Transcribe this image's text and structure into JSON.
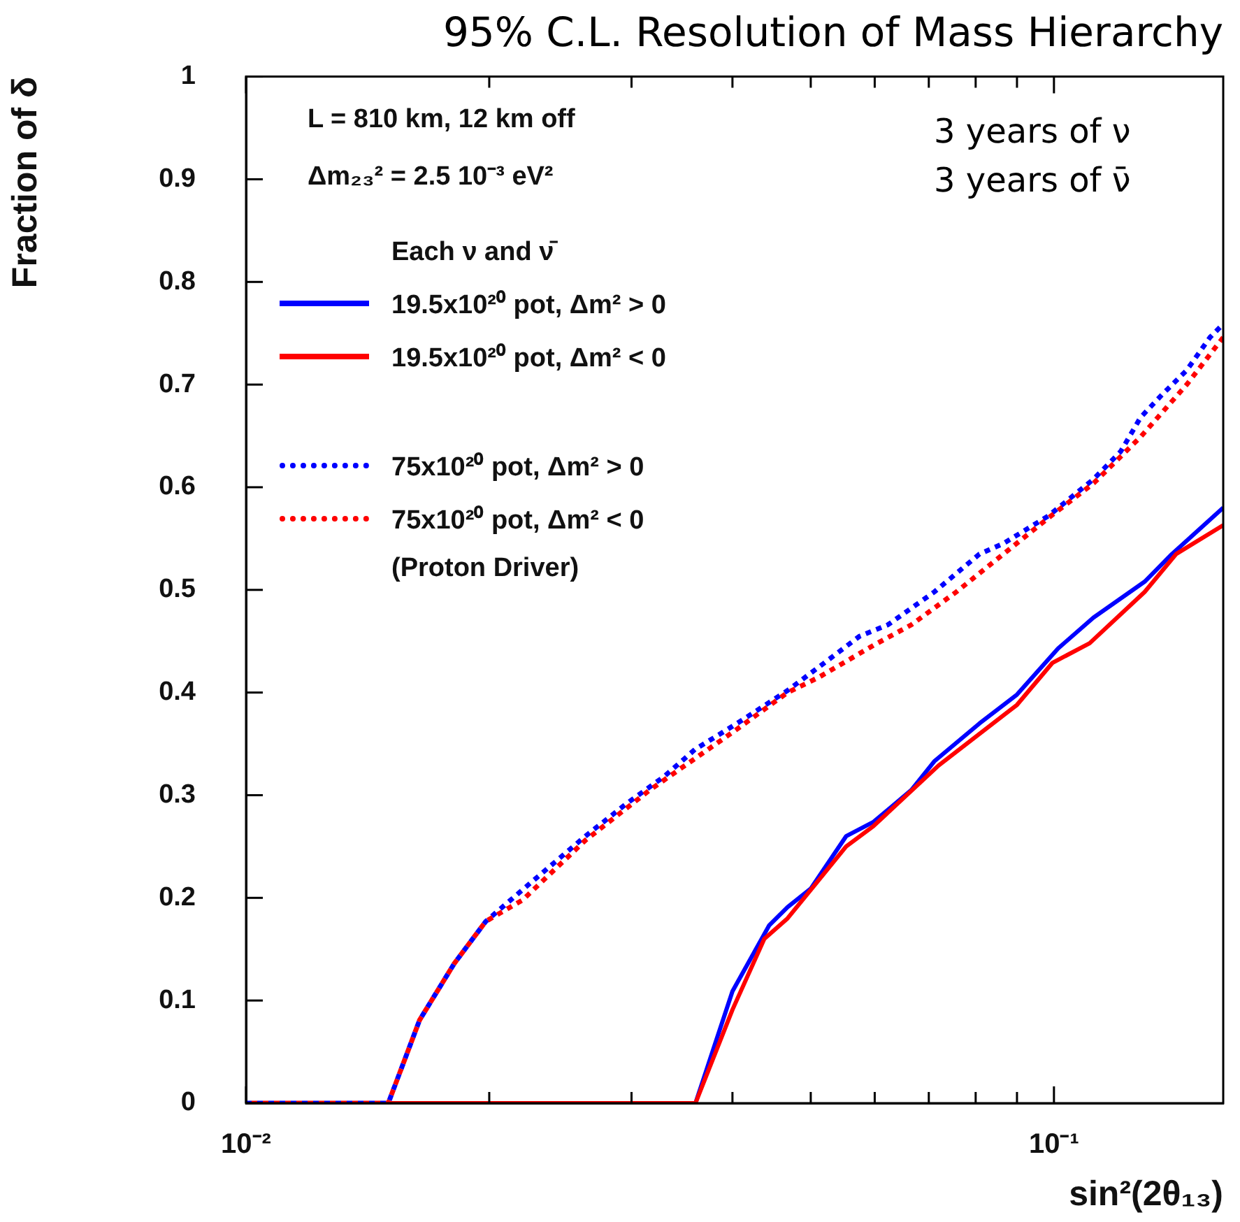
{
  "chart_data": {
    "type": "line",
    "title": "95% C.L. Resolution of Mass Hierarchy",
    "xlabel": "sin²(2θ₁₃)",
    "ylabel": "Fraction of δ",
    "legend_title": "Each ν and ν̄",
    "log": "x",
    "legend": "top left",
    "marker": "none",
    "xlim": [
      0.01,
      0.162
    ],
    "xticks": [
      {
        "value": 0.01,
        "label": "10⁻²"
      },
      {
        "value": 0.02,
        "label": null
      },
      {
        "value": 0.03,
        "label": null
      },
      {
        "value": 0.04,
        "label": null
      },
      {
        "value": 0.05,
        "label": null
      },
      {
        "value": 0.06,
        "label": null
      },
      {
        "value": 0.07,
        "label": null
      },
      {
        "value": 0.08,
        "label": null
      },
      {
        "value": 0.09,
        "label": null
      },
      {
        "value": 0.1,
        "label": "10⁻¹"
      }
    ],
    "ylim": [
      0,
      1
    ],
    "yticks": [
      0,
      0.1,
      0.2,
      0.3,
      0.4,
      0.5,
      0.6,
      0.7,
      0.8,
      0.9,
      1
    ],
    "annotations": [
      "L = 810 km, 12 km off",
      "Δm₂₃² = 2.5 10⁻³ eV²",
      "(Proton Driver)",
      "3 years of ν",
      "3 years of ν̄"
    ],
    "series": [
      {
        "name": "19.5x10²⁰ pot, Δm² > 0",
        "color": "#0000ff",
        "line_style": "solid",
        "x": [
          0.01,
          0.036,
          0.04,
          0.0444,
          0.0468,
          0.05,
          0.0553,
          0.0598,
          0.0666,
          0.0711,
          0.0809,
          0.09,
          0.1012,
          0.1119,
          0.1295,
          0.14,
          0.162
        ],
        "values": [
          0,
          0,
          0.109,
          0.173,
          0.191,
          0.209,
          0.26,
          0.274,
          0.305,
          0.333,
          0.37,
          0.398,
          0.443,
          0.473,
          0.508,
          0.535,
          0.58
        ]
      },
      {
        "name": "19.5x10²⁰ pot, Δm² < 0",
        "color": "#ff0000",
        "line_style": "solid",
        "x": [
          0.01,
          0.036,
          0.04,
          0.0438,
          0.0468,
          0.0553,
          0.0598,
          0.072,
          0.09,
          0.0996,
          0.1107,
          0.1295,
          0.1417,
          0.162
        ],
        "values": [
          0,
          0,
          0.091,
          0.16,
          0.18,
          0.25,
          0.27,
          0.329,
          0.388,
          0.429,
          0.448,
          0.498,
          0.535,
          0.563
        ]
      },
      {
        "name": "75x10²⁰ pot, Δm² > 0",
        "color": "#0000ff",
        "line_style": "dotted",
        "x": [
          0.01,
          0.015,
          0.0164,
          0.0181,
          0.0198,
          0.022,
          0.0243,
          0.0263,
          0.0296,
          0.0329,
          0.036,
          0.0385,
          0.0411,
          0.0468,
          0.0512,
          0.0575,
          0.0623,
          0.0711,
          0.0809,
          0.0865,
          0.0984,
          0.112,
          0.121,
          0.128,
          0.136,
          0.146,
          0.156,
          0.162
        ],
        "values": [
          0,
          0,
          0.081,
          0.136,
          0.177,
          0.208,
          0.237,
          0.26,
          0.292,
          0.318,
          0.345,
          0.359,
          0.373,
          0.402,
          0.425,
          0.455,
          0.466,
          0.498,
          0.535,
          0.545,
          0.572,
          0.608,
          0.635,
          0.668,
          0.69,
          0.714,
          0.746,
          0.759
        ]
      },
      {
        "name": "75x10²⁰ pot, Δm² < 0",
        "color": "#ff0000",
        "line_style": "dotted",
        "x": [
          0.01,
          0.015,
          0.0164,
          0.0181,
          0.0198,
          0.022,
          0.0263,
          0.0316,
          0.036,
          0.0403,
          0.0468,
          0.0512,
          0.0598,
          0.0666,
          0.0757,
          0.0984,
          0.112,
          0.128,
          0.146,
          0.162
        ],
        "values": [
          0,
          0,
          0.081,
          0.136,
          0.177,
          0.198,
          0.256,
          0.305,
          0.336,
          0.363,
          0.4,
          0.415,
          0.446,
          0.466,
          0.498,
          0.57,
          0.604,
          0.649,
          0.7,
          0.746
        ]
      }
    ]
  }
}
